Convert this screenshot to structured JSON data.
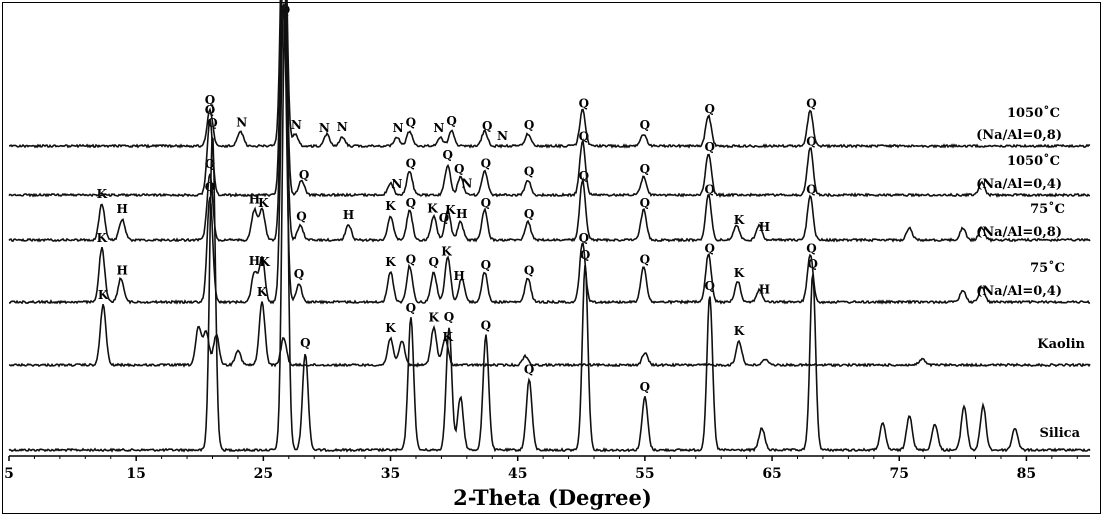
{
  "chart_data": {
    "type": "line",
    "title": "",
    "xlabel": "2-Theta (Degree)",
    "ylabel": "",
    "xlim": [
      5,
      90
    ],
    "ticks": [
      5,
      15,
      25,
      35,
      45,
      55,
      65,
      75,
      85
    ],
    "tick_labels": [
      "5",
      "15",
      "25",
      "35",
      "45",
      "55",
      "65",
      "75",
      "85"
    ],
    "grid": false,
    "legend": "none",
    "line_color": "#111111",
    "series": [
      {
        "name": "Silica",
        "peaks": [
          [
            21.0,
            0.72
          ],
          [
            26.7,
            1.0
          ],
          [
            28.3,
            0.22
          ],
          [
            36.6,
            0.3
          ],
          [
            39.6,
            0.28
          ],
          [
            40.5,
            0.12
          ],
          [
            42.5,
            0.26
          ],
          [
            45.9,
            0.16
          ],
          [
            50.3,
            0.42
          ],
          [
            55.0,
            0.12
          ],
          [
            60.1,
            0.35
          ],
          [
            64.2,
            0.05
          ],
          [
            68.2,
            0.4
          ],
          [
            73.7,
            0.06
          ],
          [
            75.8,
            0.08
          ],
          [
            77.8,
            0.06
          ],
          [
            80.1,
            0.1
          ],
          [
            81.6,
            0.1
          ],
          [
            84.1,
            0.05
          ]
        ],
        "markers": [
          {
            "label": "Q",
            "x": 21.0
          },
          {
            "label": "Q",
            "x": 26.7
          },
          {
            "label": "Q",
            "x": 28.3
          },
          {
            "label": "Q",
            "x": 36.6
          },
          {
            "label": "Q",
            "x": 39.6
          },
          {
            "label": "Q",
            "x": 42.5
          },
          {
            "label": "Q",
            "x": 45.9
          },
          {
            "label": "Q",
            "x": 50.3
          },
          {
            "label": "Q",
            "x": 55.0
          },
          {
            "label": "Q",
            "x": 60.1
          },
          {
            "label": "Q",
            "x": 68.2
          }
        ]
      },
      {
        "name": "Kaolin",
        "peaks": [
          [
            12.4,
            0.4
          ],
          [
            19.9,
            0.25
          ],
          [
            20.5,
            0.22
          ],
          [
            21.3,
            0.2
          ],
          [
            23.0,
            0.1
          ],
          [
            24.9,
            0.42
          ],
          [
            26.6,
            0.18
          ],
          [
            35.0,
            0.18
          ],
          [
            35.9,
            0.16
          ],
          [
            38.4,
            0.25
          ],
          [
            39.3,
            0.18
          ],
          [
            45.6,
            0.06
          ],
          [
            55.0,
            0.08
          ],
          [
            62.4,
            0.16
          ],
          [
            64.5,
            0.04
          ],
          [
            76.8,
            0.04
          ]
        ],
        "markers": [
          {
            "label": "K",
            "x": 12.4
          },
          {
            "label": "K",
            "x": 24.9
          },
          {
            "label": "K",
            "x": 35.0
          },
          {
            "label": "K",
            "x": 38.4
          },
          {
            "label": "K",
            "x": 39.5
          },
          {
            "label": "K",
            "x": 62.4
          }
        ]
      },
      {
        "name": "75˚C (Na/Al=0,4)",
        "label_lines": [
          "75˚C",
          "(Na/Al=0,4)"
        ],
        "peaks": [
          [
            12.3,
            0.18
          ],
          [
            13.8,
            0.08
          ],
          [
            20.8,
            0.35
          ],
          [
            24.3,
            0.1
          ],
          [
            24.9,
            0.15
          ],
          [
            26.6,
            1.0
          ],
          [
            27.8,
            0.06
          ],
          [
            35.0,
            0.1
          ],
          [
            36.5,
            0.12
          ],
          [
            38.4,
            0.1
          ],
          [
            39.5,
            0.15
          ],
          [
            40.6,
            0.08
          ],
          [
            42.4,
            0.1
          ],
          [
            45.8,
            0.08
          ],
          [
            50.1,
            0.2
          ],
          [
            54.9,
            0.12
          ],
          [
            60.0,
            0.16
          ],
          [
            62.3,
            0.07
          ],
          [
            64.0,
            0.04
          ],
          [
            68.0,
            0.16
          ],
          [
            80.0,
            0.04
          ],
          [
            81.5,
            0.05
          ]
        ],
        "markers": [
          {
            "label": "K",
            "x": 12.3
          },
          {
            "label": "H",
            "x": 13.9
          },
          {
            "label": "Q",
            "x": 20.8
          },
          {
            "label": "H",
            "x": 24.3
          },
          {
            "label": "K",
            "x": 25.1
          },
          {
            "label": "Q",
            "x": 27.8
          },
          {
            "label": "K",
            "x": 35.0
          },
          {
            "label": "Q",
            "x": 36.6
          },
          {
            "label": "Q",
            "x": 38.4
          },
          {
            "label": "K",
            "x": 39.4
          },
          {
            "label": "H",
            "x": 40.4
          },
          {
            "label": "Q",
            "x": 42.5
          },
          {
            "label": "Q",
            "x": 45.9
          },
          {
            "label": "Q",
            "x": 50.2
          },
          {
            "label": "Q",
            "x": 55.0
          },
          {
            "label": "Q",
            "x": 60.1
          },
          {
            "label": "K",
            "x": 62.4
          },
          {
            "label": "H",
            "x": 64.4
          },
          {
            "label": "Q",
            "x": 68.1
          }
        ]
      },
      {
        "name": "75˚C (Na/Al=0,8)",
        "label_lines": [
          "75˚C",
          "(Na/Al=0,8)"
        ],
        "peaks": [
          [
            12.3,
            0.12
          ],
          [
            13.9,
            0.07
          ],
          [
            20.8,
            0.22
          ],
          [
            24.3,
            0.1
          ],
          [
            24.9,
            0.1
          ],
          [
            26.6,
            1.0
          ],
          [
            27.9,
            0.05
          ],
          [
            31.7,
            0.05
          ],
          [
            35.0,
            0.08
          ],
          [
            36.5,
            0.1
          ],
          [
            38.4,
            0.08
          ],
          [
            39.5,
            0.1
          ],
          [
            40.5,
            0.06
          ],
          [
            42.4,
            0.1
          ],
          [
            45.8,
            0.06
          ],
          [
            50.1,
            0.2
          ],
          [
            54.9,
            0.1
          ],
          [
            60.0,
            0.15
          ],
          [
            62.2,
            0.05
          ],
          [
            64.0,
            0.05
          ],
          [
            68.0,
            0.15
          ],
          [
            75.8,
            0.04
          ],
          [
            80.0,
            0.04
          ],
          [
            81.5,
            0.04
          ]
        ],
        "markers": [
          {
            "label": "K",
            "x": 12.3
          },
          {
            "label": "H",
            "x": 13.9
          },
          {
            "label": "Q",
            "x": 20.8
          },
          {
            "label": "H",
            "x": 24.3
          },
          {
            "label": "K",
            "x": 25.0
          },
          {
            "label": "Q",
            "x": 28.0
          },
          {
            "label": "H",
            "x": 31.7
          },
          {
            "label": "K",
            "x": 35.0
          },
          {
            "label": "Q",
            "x": 36.6
          },
          {
            "label": "K",
            "x": 38.3
          },
          {
            "label": "Q",
            "x": 39.2
          },
          {
            "label": "K",
            "x": 39.7
          },
          {
            "label": "H",
            "x": 40.6
          },
          {
            "label": "Q",
            "x": 42.5
          },
          {
            "label": "Q",
            "x": 45.9
          },
          {
            "label": "Q",
            "x": 50.2
          },
          {
            "label": "Q",
            "x": 55.0
          },
          {
            "label": "Q",
            "x": 60.1
          },
          {
            "label": "K",
            "x": 62.4
          },
          {
            "label": "H",
            "x": 64.4
          },
          {
            "label": "Q",
            "x": 68.1
          }
        ]
      },
      {
        "name": "1050˚C (Na/Al=0,4)",
        "label_lines": [
          "1050˚C",
          "(Na/Al=0,4)"
        ],
        "peaks": [
          [
            20.8,
            0.25
          ],
          [
            26.6,
            1.0
          ],
          [
            28.0,
            0.05
          ],
          [
            35.0,
            0.04
          ],
          [
            36.5,
            0.08
          ],
          [
            39.5,
            0.1
          ],
          [
            40.5,
            0.06
          ],
          [
            42.4,
            0.08
          ],
          [
            45.8,
            0.05
          ],
          [
            50.1,
            0.18
          ],
          [
            54.9,
            0.06
          ],
          [
            60.0,
            0.14
          ],
          [
            68.0,
            0.16
          ],
          [
            81.5,
            0.04
          ]
        ],
        "markers": [
          {
            "label": "Q",
            "x": 20.8
          },
          {
            "label": "Q",
            "x": 28.2
          },
          {
            "label": "N",
            "x": 35.5
          },
          {
            "label": "Q",
            "x": 36.6
          },
          {
            "label": "Q",
            "x": 39.5
          },
          {
            "label": "N",
            "x": 41.0
          },
          {
            "label": "Q",
            "x": 40.4
          },
          {
            "label": "Q",
            "x": 42.5
          },
          {
            "label": "Q",
            "x": 45.9
          },
          {
            "label": "Q",
            "x": 50.2
          },
          {
            "label": "Q",
            "x": 55.0
          },
          {
            "label": "Q",
            "x": 60.1
          },
          {
            "label": "Q",
            "x": 68.1
          }
        ]
      },
      {
        "name": "1050˚C (Na/Al=0,8)",
        "label_lines": [
          "1050˚C",
          "(Na/Al=0,8)"
        ],
        "peaks": [
          [
            20.8,
            0.12
          ],
          [
            23.2,
            0.05
          ],
          [
            26.6,
            1.0
          ],
          [
            27.5,
            0.04
          ],
          [
            30.0,
            0.04
          ],
          [
            31.2,
            0.03
          ],
          [
            35.5,
            0.03
          ],
          [
            36.5,
            0.05
          ],
          [
            38.9,
            0.03
          ],
          [
            39.8,
            0.05
          ],
          [
            42.4,
            0.05
          ],
          [
            45.8,
            0.04
          ],
          [
            50.1,
            0.12
          ],
          [
            54.9,
            0.04
          ],
          [
            60.0,
            0.1
          ],
          [
            68.0,
            0.12
          ]
        ],
        "markers": [
          {
            "label": "Q",
            "x": 20.8
          },
          {
            "label": "N",
            "x": 23.3
          },
          {
            "label": "N",
            "x": 27.6
          },
          {
            "label": "N",
            "x": 29.8
          },
          {
            "label": "N",
            "x": 31.2
          },
          {
            "label": "N",
            "x": 35.6
          },
          {
            "label": "Q",
            "x": 36.6
          },
          {
            "label": "N",
            "x": 38.8
          },
          {
            "label": "Q",
            "x": 39.8
          },
          {
            "label": "Q",
            "x": 42.6
          },
          {
            "label": "N",
            "x": 43.8
          },
          {
            "label": "Q",
            "x": 45.9
          },
          {
            "label": "Q",
            "x": 50.2
          },
          {
            "label": "Q",
            "x": 55.0
          },
          {
            "label": "Q",
            "x": 60.1
          },
          {
            "label": "Q",
            "x": 68.1
          }
        ]
      }
    ]
  }
}
